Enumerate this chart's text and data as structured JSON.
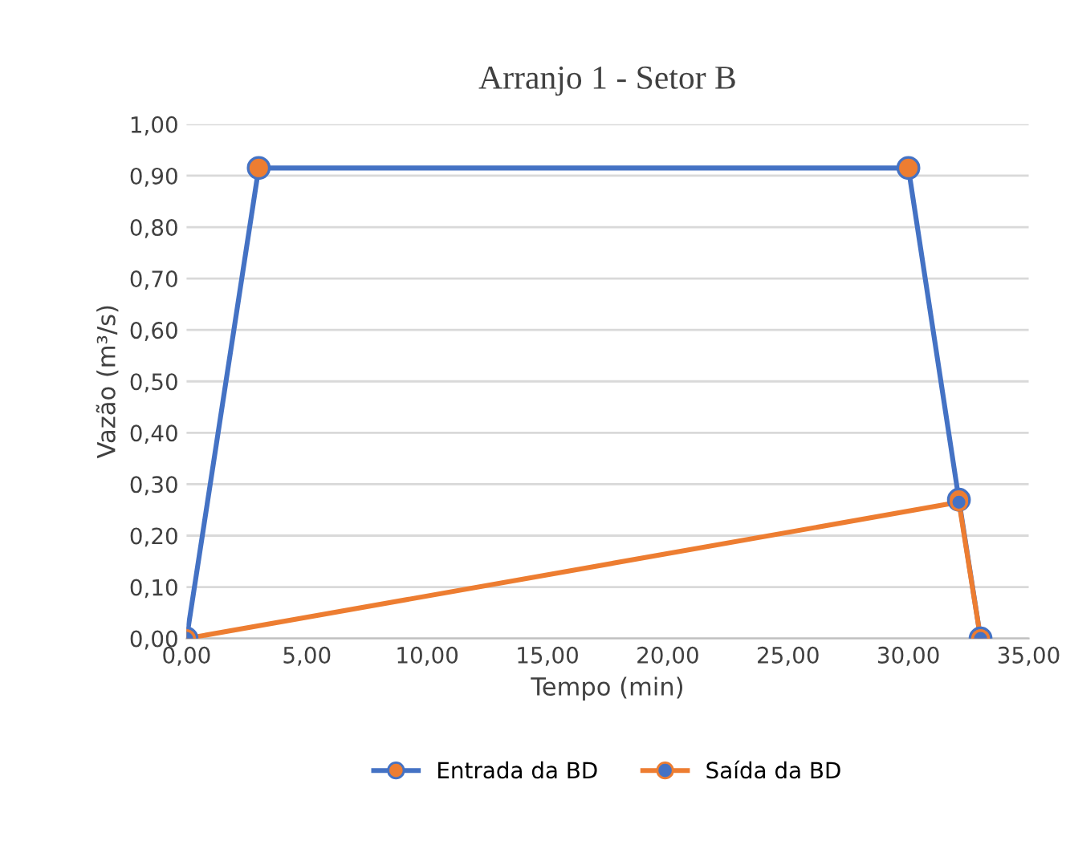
{
  "chart_data": {
    "type": "line",
    "title": "Arranjo 1 - Setor B",
    "xlabel": "Tempo (min)",
    "ylabel": "Vazão (m³/s)",
    "series": [
      {
        "name": "Entrada da BD",
        "color": "#4472c4",
        "x": [
          0,
          3,
          30,
          32.1,
          33
        ],
        "values": [
          0,
          0.915,
          0.915,
          0.27,
          0
        ],
        "colors": [
          "#ed7d31",
          "#ed7d31",
          "#ed7d31",
          "#ed7d31",
          "#ed7d31"
        ]
      },
      {
        "name": "Saída da BD",
        "color": "#ed7d31",
        "x": [
          0,
          32.1,
          33
        ],
        "values": [
          0,
          0.265,
          0
        ],
        "colors": [
          "#4472c4",
          "#4472c4",
          "#4472c4"
        ]
      }
    ],
    "xlim": [
      0,
      35
    ],
    "ylim": [
      0,
      1
    ],
    "xticks": [
      {
        "value": 0,
        "label": "0,00"
      },
      {
        "value": 5,
        "label": "5,00"
      },
      {
        "value": 10,
        "label": "10,00"
      },
      {
        "value": 15,
        "label": "15,00"
      },
      {
        "value": 20,
        "label": "20,00"
      },
      {
        "value": 25,
        "label": "25,00"
      },
      {
        "value": 30,
        "label": "30,00"
      },
      {
        "value": 35,
        "label": "35,00"
      }
    ],
    "yticks": [
      {
        "value": 0,
        "label": "0,00"
      },
      {
        "value": 0.1,
        "label": "0,10"
      },
      {
        "value": 0.2,
        "label": "0,20"
      },
      {
        "value": 0.3,
        "label": "0,30"
      },
      {
        "value": 0.4,
        "label": "0,40"
      },
      {
        "value": 0.5,
        "label": "0,50"
      },
      {
        "value": 0.6,
        "label": "0,60"
      },
      {
        "value": 0.7,
        "label": "0,70"
      },
      {
        "value": 0.8,
        "label": "0,80"
      },
      {
        "value": 0.9,
        "label": "0,90"
      },
      {
        "value": 1,
        "label": "1,00"
      }
    ],
    "grid": "y",
    "legend": "bottom",
    "marker": "circle",
    "line_style": "solid"
  }
}
